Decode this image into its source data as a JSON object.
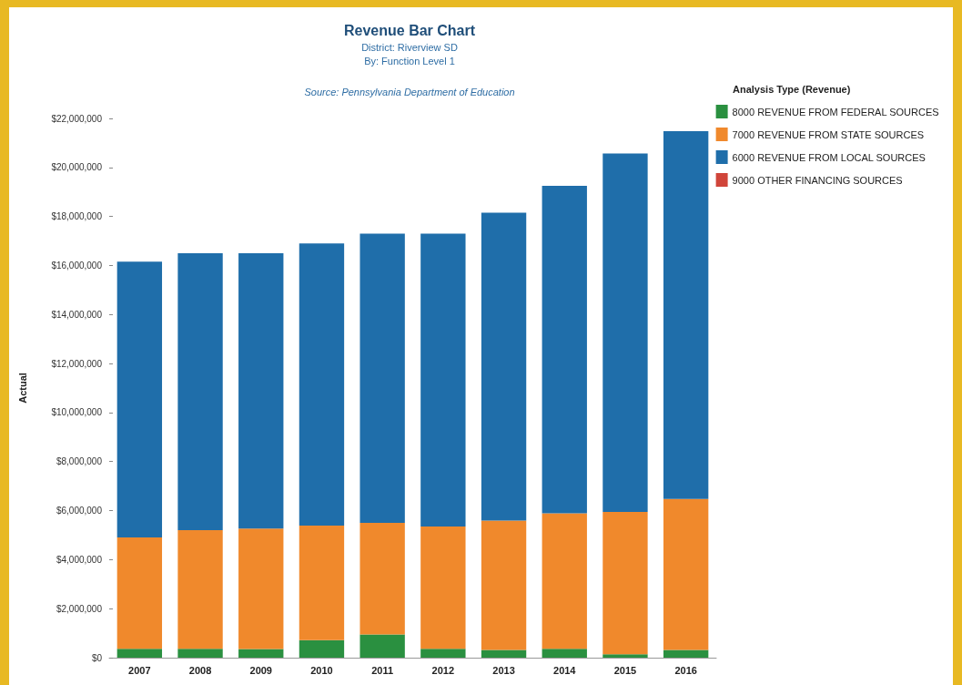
{
  "chart_data": {
    "type": "bar",
    "title": "Revenue Bar Chart",
    "subtitle": "District: Riverview SD\nBy: Function Level 1",
    "annotations": [
      "Source: Pennsylvania Department of Education"
    ],
    "ylabel": "Actual",
    "legend_title": "Analysis Type (Revenue)",
    "categories": [
      "2007",
      "2008",
      "2009",
      "2010",
      "2011",
      "2012",
      "2013",
      "2014",
      "2015",
      "2016"
    ],
    "stacked": true,
    "series": [
      {
        "name": "8000 REVENUE FROM FEDERAL SOURCES",
        "color": "#2a9040",
        "values": [
          360000,
          360000,
          350000,
          720000,
          950000,
          360000,
          320000,
          360000,
          140000,
          320000
        ]
      },
      {
        "name": "7000 REVENUE FROM STATE SOURCES",
        "color": "#f0892c",
        "values": [
          4550000,
          4840000,
          4920000,
          4670000,
          4550000,
          4990000,
          5270000,
          5530000,
          5810000,
          6160000
        ]
      },
      {
        "name": "6000 REVENUE FROM LOCAL SOURCES",
        "color": "#1f6eaa",
        "values": [
          11250000,
          11300000,
          11230000,
          11510000,
          11800000,
          11950000,
          12560000,
          13360000,
          14620000,
          15000000
        ]
      },
      {
        "name": "9000 OTHER FINANCING SOURCES",
        "color": "#d0453a",
        "values": [
          0,
          0,
          0,
          0,
          0,
          0,
          0,
          0,
          0,
          0
        ]
      }
    ],
    "ylim": [
      0,
      22000000
    ],
    "yticks": [
      {
        "value": 0,
        "label": "$0"
      },
      {
        "value": 2000000,
        "label": "$2,000,000"
      },
      {
        "value": 4000000,
        "label": "$4,000,000"
      },
      {
        "value": 6000000,
        "label": "$6,000,000"
      },
      {
        "value": 8000000,
        "label": "$8,000,000"
      },
      {
        "value": 10000000,
        "label": "$10,000,000"
      },
      {
        "value": 12000000,
        "label": "$12,000,000"
      },
      {
        "value": 14000000,
        "label": "$14,000,000"
      },
      {
        "value": 16000000,
        "label": "$16,000,000"
      },
      {
        "value": 18000000,
        "label": "$18,000,000"
      },
      {
        "value": 20000000,
        "label": "$20,000,000"
      },
      {
        "value": 22000000,
        "label": "$22,000,000"
      }
    ],
    "grid": false,
    "legend": "right"
  }
}
